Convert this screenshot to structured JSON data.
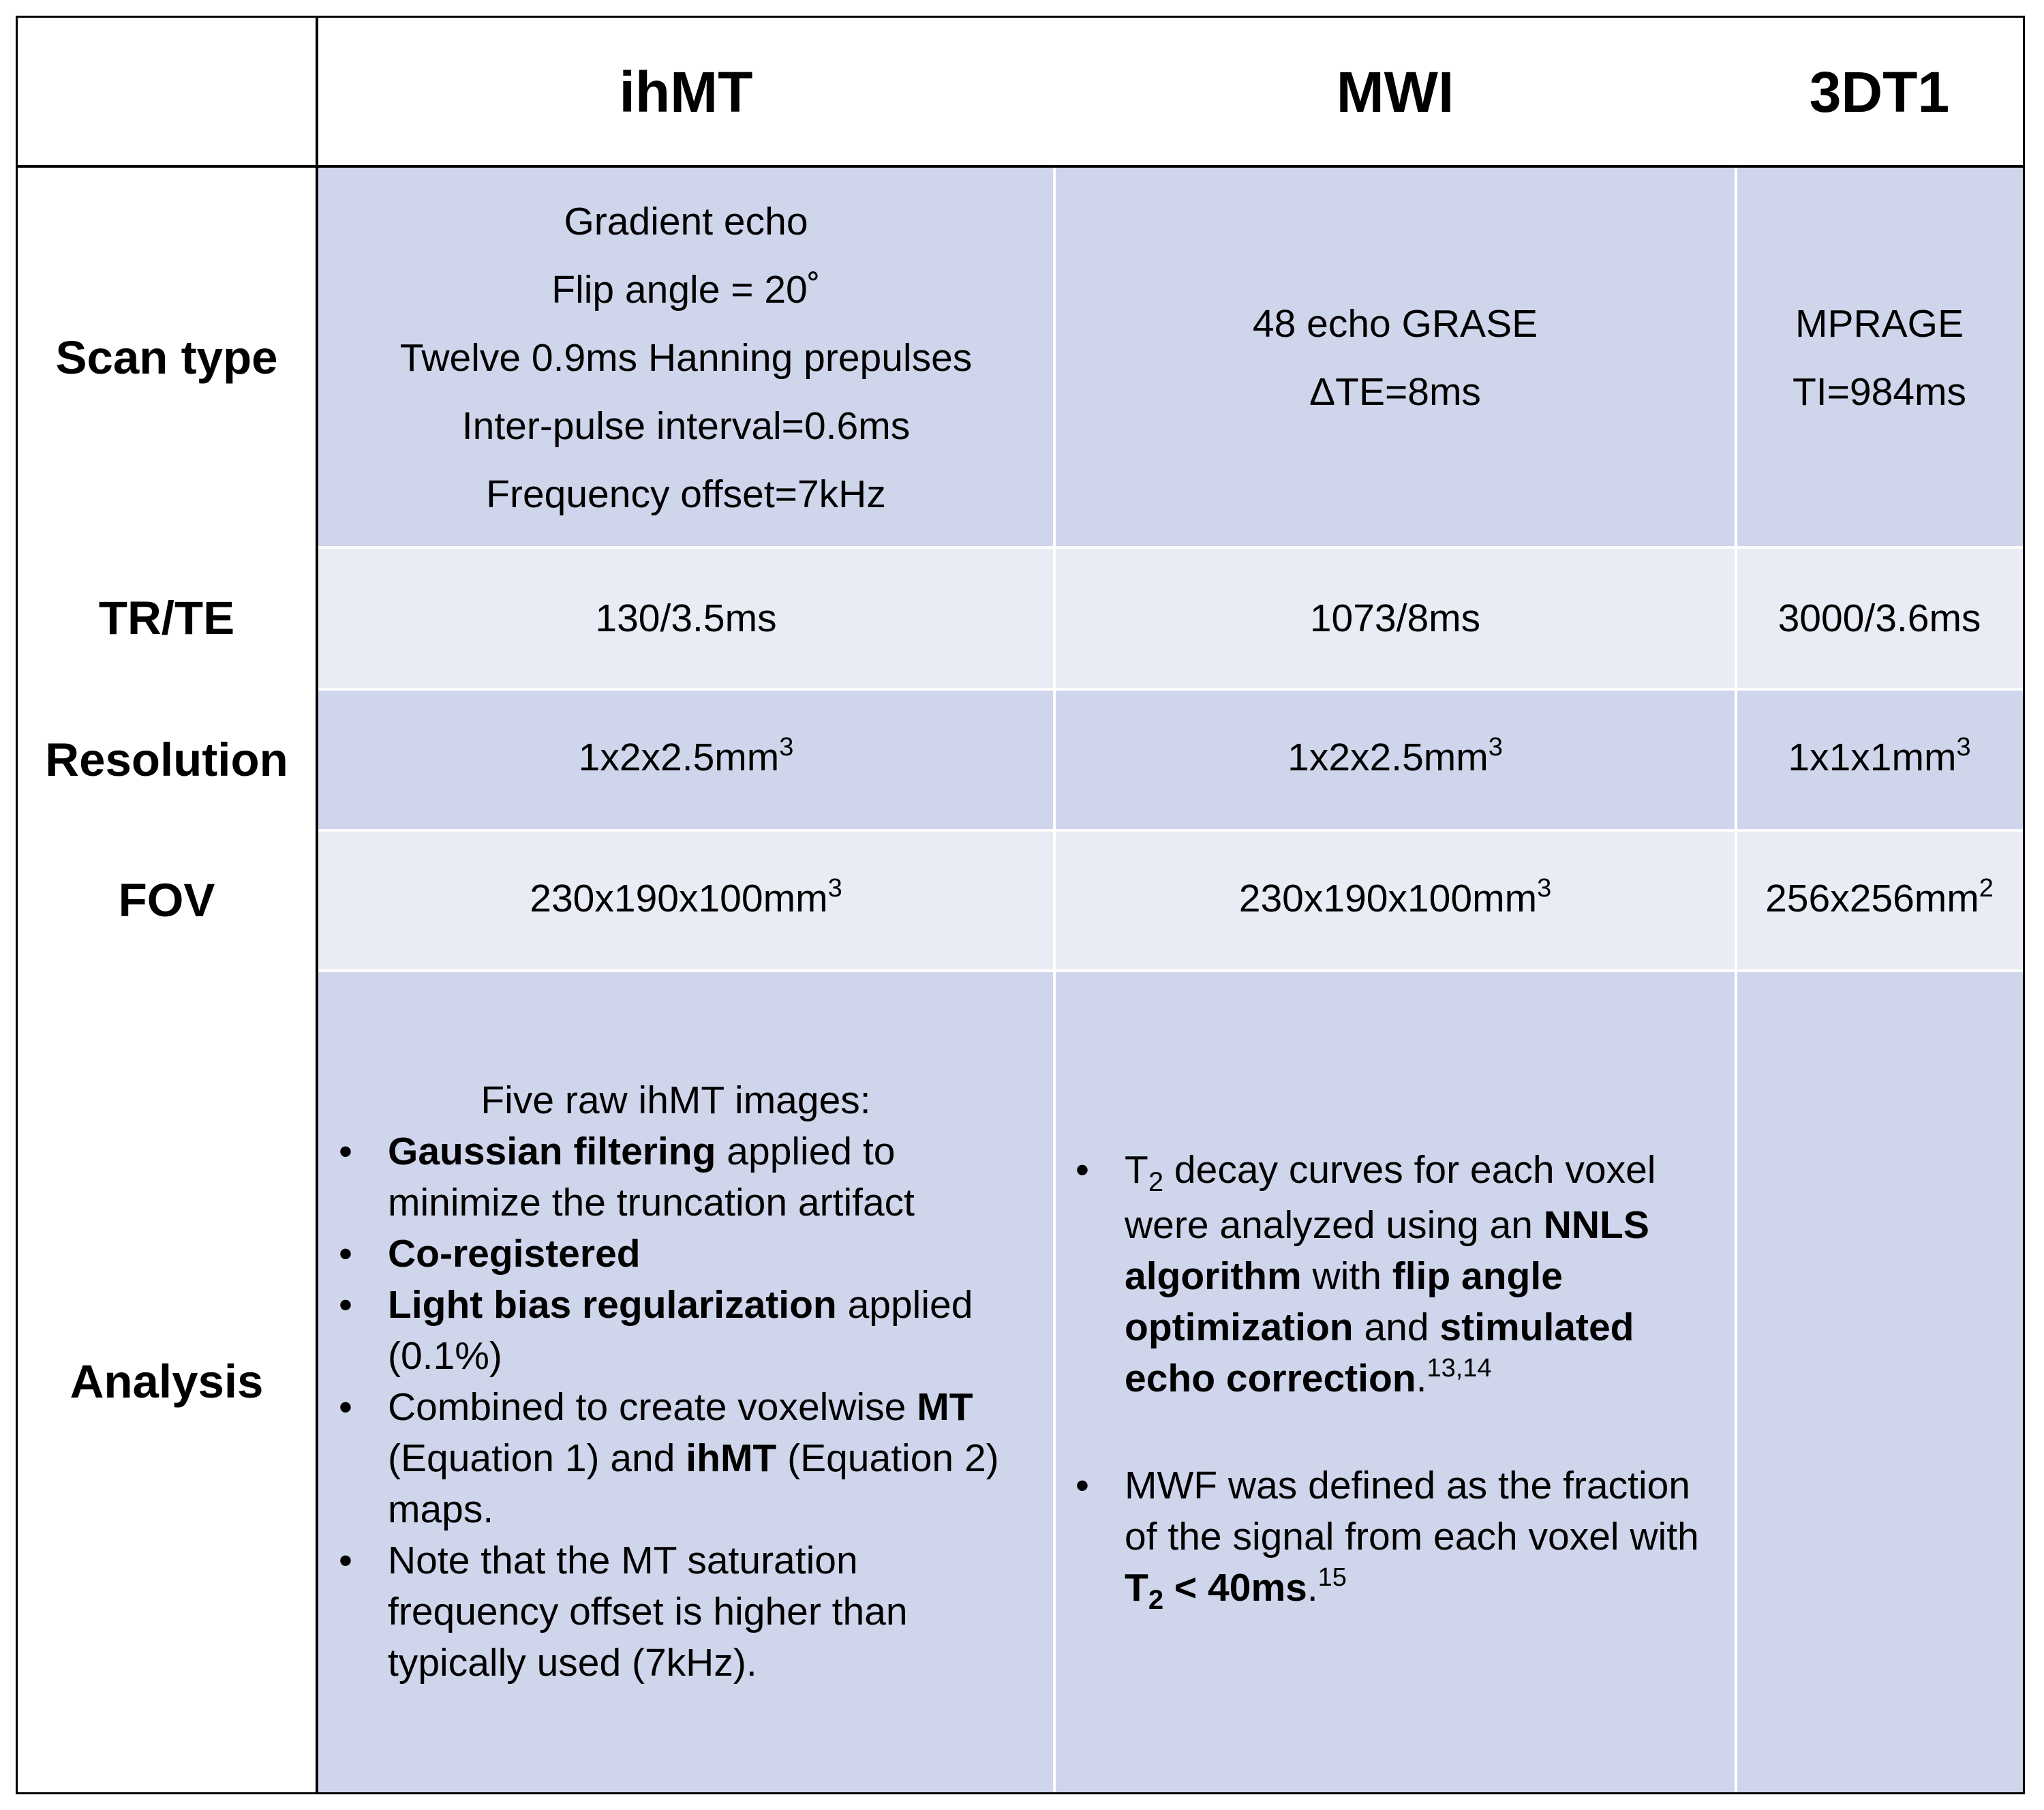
{
  "header": {
    "col1": "ihMT",
    "col2": "MWI",
    "col3": "3DT1"
  },
  "rows": {
    "scan_type": {
      "label": "Scan type",
      "ihmt": [
        "Gradient echo",
        "Flip angle = 20˚",
        "Twelve 0.9ms Hanning prepulses",
        "Inter-pulse interval=0.6ms",
        "Frequency offset=7kHz"
      ],
      "mwi": [
        "48 echo GRASE",
        "ΔTE=8ms"
      ],
      "t1": [
        "MPRAGE",
        "TI=984ms"
      ]
    },
    "tr_te": {
      "label": "TR/TE",
      "ihmt": "130/3.5ms",
      "mwi": "1073/8ms",
      "t1": "3000/3.6ms"
    },
    "resolution": {
      "label": "Resolution",
      "ihmt": "1x2x2.5mm",
      "mwi": "1x2x2.5mm",
      "t1": "1x1x1mm",
      "ihmt_exp": "3",
      "mwi_exp": "3",
      "t1_exp": "3"
    },
    "fov": {
      "label": "FOV",
      "ihmt": "230x190x100mm",
      "mwi": "230x190x100mm",
      "t1": "256x256mm",
      "ihmt_exp": "3",
      "mwi_exp": "3",
      "t1_exp": "2"
    },
    "analysis": {
      "label": "Analysis",
      "ihmt": {
        "intro": "Five raw ihMT images:",
        "b1": {
          "bold": "Gaussian filtering",
          "rest": " applied to minimize the truncation artifact"
        },
        "b2": {
          "bold": "Co-registered"
        },
        "b3": {
          "bold": "Light bias regularization",
          "rest": " applied (0.1%)"
        },
        "b4": {
          "t1": "Combined to create voxelwise ",
          "bold1": "MT",
          "t2": " (Equation 1) and ",
          "bold2": "ihMT",
          "t3": " (Equation 2) maps."
        },
        "b5": {
          "t": "Note that the MT saturation frequency offset is higher than typically used (7kHz)."
        }
      },
      "mwi": {
        "b1": {
          "t0": "T",
          "sub": "2",
          "t1": " decay curves for each voxel were analyzed using an ",
          "bold1": "NNLS algorithm",
          "t2": " with ",
          "bold2": "flip angle optimization",
          "t3": " and ",
          "bold3": "stimulated echo correction",
          "t4": ".",
          "sup": "13,14"
        },
        "b2": {
          "t1": "MWF was defined as the fraction of the signal from each voxel with ",
          "bold1": "T",
          "sub": "2",
          "bold2": " < 40ms",
          "t2": ".",
          "sup": "15"
        }
      }
    }
  },
  "colors": {
    "dark_row": "#cfd5ea",
    "light_row": "#e9ebf5",
    "border": "#000000"
  }
}
